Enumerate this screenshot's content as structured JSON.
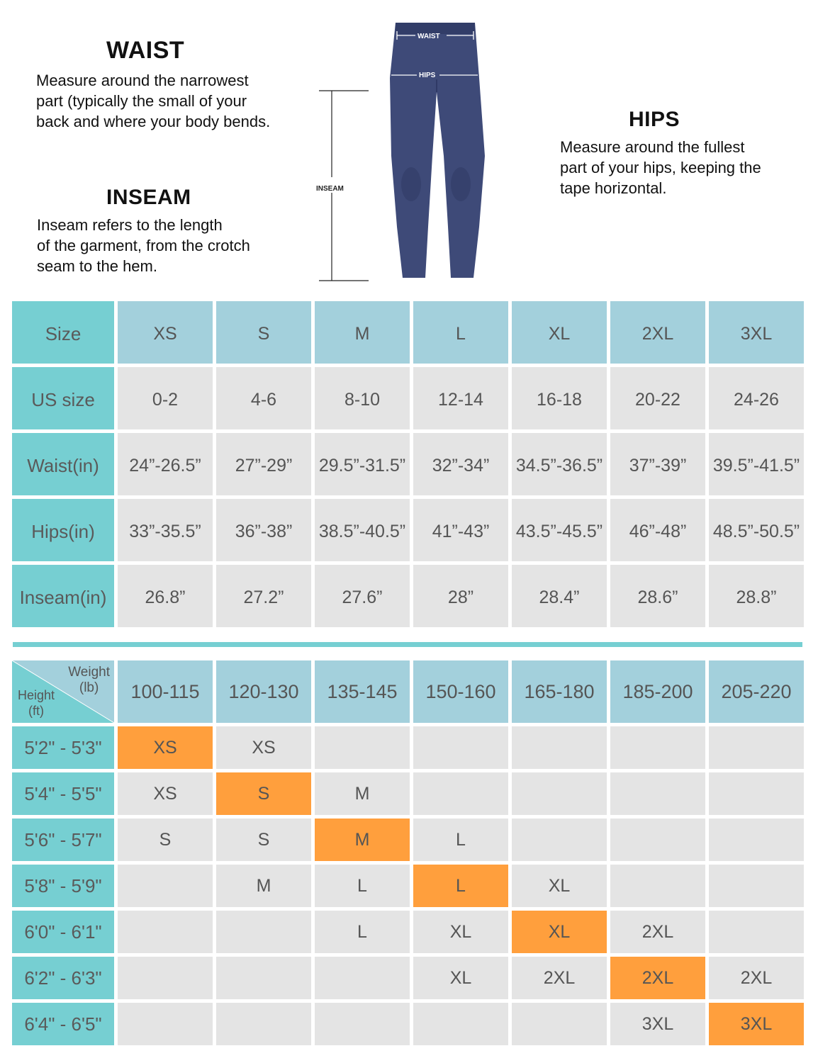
{
  "intro": {
    "waist": {
      "title": "WAIST",
      "text": "Measure around the narrowest\npart (typically the small of your\nback and where your body bends."
    },
    "inseam": {
      "title": "INSEAM",
      "text": "Inseam refers to the length\nof the garment, from the crotch\nseam to the hem."
    },
    "hips": {
      "title": "HIPS",
      "text": "Measure around the fullest\npart of your hips, keeping the\ntape horizontal."
    }
  },
  "figure": {
    "waist_label": "WAIST",
    "hips_label": "HIPS",
    "inseam_label": "INSEAM",
    "legging_color": "#3e4a78"
  },
  "size_table": {
    "rows": [
      {
        "label": "Size",
        "values": [
          "XS",
          "S",
          "M",
          "L",
          "XL",
          "2XL",
          "3XL"
        ]
      },
      {
        "label": "US size",
        "values": [
          "0-2",
          "4-6",
          "8-10",
          "12-14",
          "16-18",
          "20-22",
          "24-26"
        ]
      },
      {
        "label": "Waist(in)",
        "values": [
          "24”-26.5”",
          "27”-29”",
          "29.5”-31.5”",
          "32”-34”",
          "34.5”-36.5”",
          "37”-39”",
          "39.5”-41.5”"
        ]
      },
      {
        "label": "Hips(in)",
        "values": [
          "33”-35.5”",
          "36”-38”",
          "38.5”-40.5”",
          "41”-43”",
          "43.5”-45.5”",
          "46”-48”",
          "48.5”-50.5”"
        ]
      },
      {
        "label": "Inseam(in)",
        "values": [
          "26.8”",
          "27.2”",
          "27.6”",
          "28”",
          "28.4”",
          "28.6”",
          "28.8”"
        ]
      }
    ]
  },
  "fit_table": {
    "corner_weight": "Weight\n(lb)",
    "corner_height": "Height\n(ft)",
    "weights": [
      "100-115",
      "120-130",
      "135-145",
      "150-160",
      "165-180",
      "185-200",
      "205-220"
    ],
    "rows": [
      {
        "height": "5'2\" - 5'3\"",
        "values": [
          "XS",
          "XS",
          "",
          "",
          "",
          "",
          ""
        ],
        "highlight": 0
      },
      {
        "height": "5'4\" - 5'5\"",
        "values": [
          "XS",
          "S",
          "M",
          "",
          "",
          "",
          ""
        ],
        "highlight": 1
      },
      {
        "height": "5'6\" - 5'7\"",
        "values": [
          "S",
          "S",
          "M",
          "L",
          "",
          "",
          ""
        ],
        "highlight": 2
      },
      {
        "height": "5'8\" - 5'9\"",
        "values": [
          "",
          "M",
          "L",
          "L",
          "XL",
          "",
          ""
        ],
        "highlight": 3
      },
      {
        "height": "6'0\" - 6'1\"",
        "values": [
          "",
          "",
          "L",
          "XL",
          "XL",
          "2XL",
          ""
        ],
        "highlight": 4
      },
      {
        "height": "6'2\" - 6'3\"",
        "values": [
          "",
          "",
          "",
          "XL",
          "2XL",
          "2XL",
          "2XL"
        ],
        "highlight": 5
      },
      {
        "height": "6'4\" - 6'5\"",
        "values": [
          "",
          "",
          "",
          "",
          "",
          "3XL",
          "3XL"
        ],
        "highlight": 6
      }
    ],
    "highlight_color": "#ff9f3d"
  }
}
